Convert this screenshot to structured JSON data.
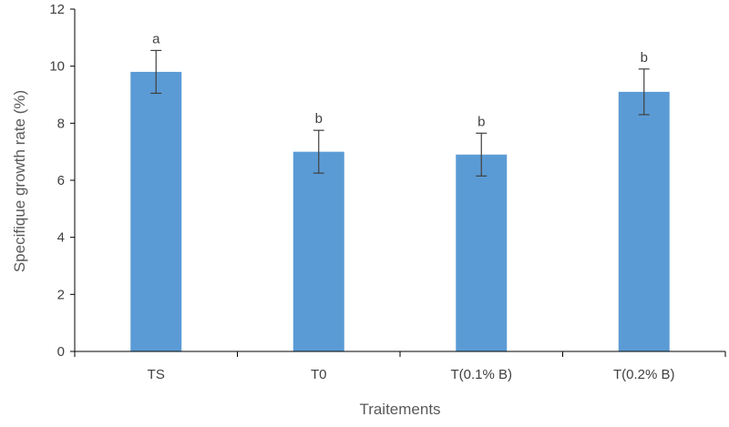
{
  "colors": {
    "bar": "#5b9bd5",
    "axis": "#000000",
    "error_bar": "#404040",
    "text": "#404040"
  },
  "chart_data": {
    "type": "bar",
    "title": "",
    "xlabel": "Traitements",
    "ylabel": "Specifique growth rate (%)",
    "categories": [
      "TS",
      "T0",
      "T(0.1% B)",
      "T(0.2% B)"
    ],
    "values": [
      9.8,
      7.0,
      6.9,
      9.1
    ],
    "errors": [
      0.75,
      0.75,
      0.75,
      0.8
    ],
    "significance": [
      "a",
      "b",
      "b",
      "b"
    ],
    "ylim": [
      0,
      12
    ],
    "yticks": [
      0,
      2,
      4,
      6,
      8,
      10,
      12
    ],
    "grid": false,
    "legend": "none"
  }
}
